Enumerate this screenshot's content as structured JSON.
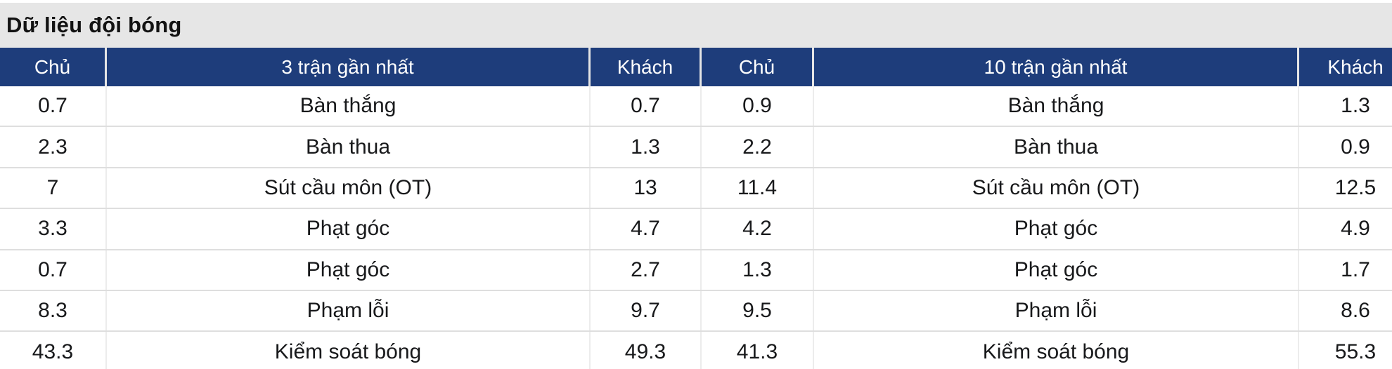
{
  "page": {
    "title": "Dữ liệu đội bóng"
  },
  "table": {
    "headers": [
      "Chủ",
      "3 trận gần nhất",
      "Khách",
      "Chủ",
      "10 trận gần nhất",
      "Khách"
    ],
    "rows": [
      [
        "0.7",
        "Bàn thắng",
        "0.7",
        "0.9",
        "Bàn thắng",
        "1.3"
      ],
      [
        "2.3",
        "Bàn thua",
        "1.3",
        "2.2",
        "Bàn thua",
        "0.9"
      ],
      [
        "7",
        "Sút cầu môn (OT)",
        "13",
        "11.4",
        "Sút cầu môn (OT)",
        "12.5"
      ],
      [
        "3.3",
        "Phạt góc",
        "4.7",
        "4.2",
        "Phạt góc",
        "4.9"
      ],
      [
        "0.7",
        "Phạt góc",
        "2.7",
        "1.3",
        "Phạt góc",
        "1.7"
      ],
      [
        "8.3",
        "Phạm lỗi",
        "9.7",
        "9.5",
        "Phạm lỗi",
        "8.6"
      ],
      [
        "43.3",
        "Kiểm soát bóng",
        "49.3",
        "41.3",
        "Kiểm soát bóng",
        "55.3"
      ]
    ],
    "colors": {
      "header_bg": "#1e3d7b",
      "header_text": "#ffffff",
      "title_band_bg": "#e6e6e6",
      "body_text": "#18191b"
    }
  }
}
